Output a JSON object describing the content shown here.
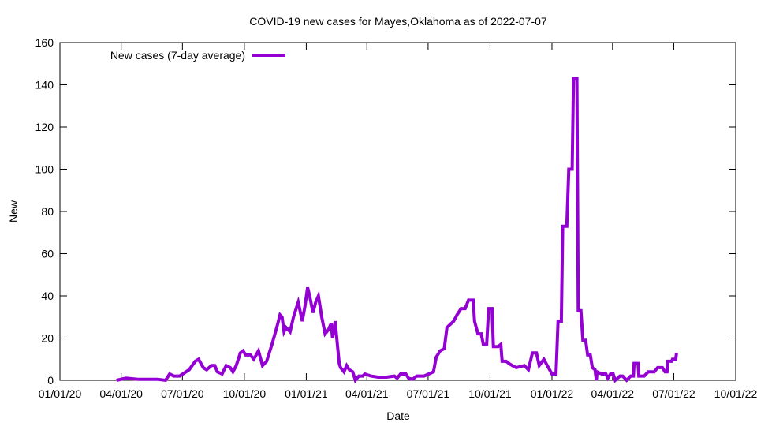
{
  "chart_data": {
    "type": "line",
    "title": "COVID-19 new cases for Mayes,Oklahoma as of 2022-07-07",
    "xlabel": "Date",
    "ylabel": "New",
    "x_units": "days since 01/01/20",
    "xlim": [
      0,
      1004
    ],
    "ylim": [
      0,
      160
    ],
    "yticks": [
      0,
      20,
      40,
      60,
      80,
      100,
      120,
      140,
      160
    ],
    "ytick_labels": [
      "0",
      "20",
      "40",
      "60",
      "80",
      "100",
      "120",
      "140",
      "160"
    ],
    "xticks": [
      0,
      91,
      182,
      274,
      366,
      456,
      547,
      639,
      731,
      821,
      912,
      1004
    ],
    "xtick_labels": [
      "01/01/20",
      "04/01/20",
      "07/01/20",
      "10/01/20",
      "01/01/21",
      "04/01/21",
      "07/01/21",
      "10/01/21",
      "01/01/22",
      "04/01/22",
      "07/01/22",
      "10/01/22"
    ],
    "grid": false,
    "legend_position": "top-left",
    "series": [
      {
        "name": "New cases (7-day average)",
        "color": "#9400d3",
        "x": [
          84,
          98,
          116,
          145,
          157,
          163,
          169,
          178,
          192,
          201,
          206,
          213,
          218,
          225,
          230,
          234,
          241,
          247,
          253,
          257,
          262,
          268,
          272,
          276,
          283,
          288,
          295,
          301,
          307,
          315,
          323,
          327,
          330,
          333,
          336,
          342,
          347,
          354,
          360,
          364,
          368,
          371,
          376,
          380,
          384,
          389,
          394,
          399,
          403,
          405,
          409,
          411,
          415,
          417,
          422,
          426,
          430,
          435,
          439,
          444,
          450,
          453,
          462,
          473,
          485,
          497,
          501,
          506,
          514,
          518,
          524,
          530,
          541,
          555,
          559,
          565,
          571,
          575,
          585,
          590,
          596,
          602,
          607,
          614,
          616,
          621,
          626,
          629,
          634,
          637,
          642,
          644,
          651,
          655,
          657,
          663,
          667,
          672,
          678,
          690,
          696,
          702,
          708,
          712,
          719,
          724,
          731,
          737,
          740,
          745,
          747,
          753,
          756,
          761,
          763,
          768,
          770,
          774,
          777,
          781,
          784,
          788,
          791,
          795,
          797,
          798,
          805,
          811,
          814,
          818,
          822,
          825,
          832,
          836,
          842,
          848,
          852,
          853,
          859,
          860,
          868,
          874,
          883,
          888,
          895,
          899,
          902,
          903,
          909,
          910,
          915,
          916
        ],
        "y": [
          0,
          1,
          0.5,
          0.5,
          0,
          3,
          2,
          2,
          5,
          9,
          10,
          6,
          5,
          7,
          7,
          4,
          3,
          7,
          6,
          4,
          7,
          13,
          14,
          12,
          12,
          10,
          14,
          7,
          9,
          17,
          26,
          31,
          30,
          23,
          25,
          23,
          30,
          37,
          28,
          35,
          44,
          40,
          32,
          37,
          40,
          30,
          22,
          24,
          27,
          20,
          28,
          21,
          8,
          6,
          4,
          7,
          5,
          4,
          0,
          2,
          2,
          3,
          2,
          1.5,
          1.5,
          2,
          1,
          3,
          3,
          1,
          0.5,
          2,
          2,
          4,
          11,
          14,
          15,
          25,
          28,
          31,
          34,
          34,
          38,
          38,
          28,
          22,
          22,
          17,
          17,
          34,
          34,
          16,
          16,
          17,
          9,
          9,
          8,
          7,
          6,
          7,
          5,
          13,
          13,
          7,
          10,
          7,
          3,
          3,
          28,
          28,
          73,
          73,
          100,
          100,
          143,
          143,
          33,
          33,
          19,
          19,
          12,
          12,
          6,
          5,
          0,
          4,
          3,
          3,
          1,
          3,
          3,
          0,
          2,
          2,
          0,
          2,
          2,
          8,
          8,
          2,
          2,
          4,
          4,
          6,
          6,
          4,
          4,
          9,
          9,
          10,
          10,
          13
        ]
      }
    ]
  }
}
